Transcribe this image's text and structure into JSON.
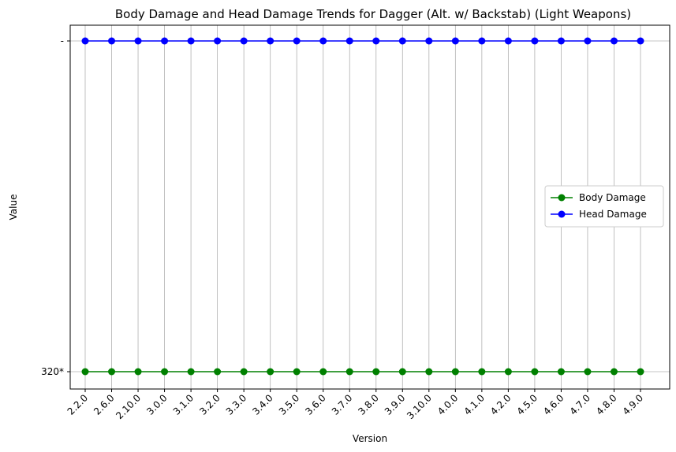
{
  "chart_data": {
    "type": "line",
    "title": "Body Damage and Head Damage Trends for Dagger (Alt. w/ Backstab) (Light Weapons)",
    "xlabel": "Version",
    "ylabel": "Value",
    "categories": [
      "2.2.0",
      "2.6.0",
      "2.10.0",
      "3.0.0",
      "3.1.0",
      "3.2.0",
      "3.3.0",
      "3.4.0",
      "3.5.0",
      "3.6.0",
      "3.7.0",
      "3.8.0",
      "3.9.0",
      "3.10.0",
      "4.0.0",
      "4.1.0",
      "4.2.0",
      "4.5.0",
      "4.6.0",
      "4.7.0",
      "4.8.0",
      "4.9.0"
    ],
    "y_categories": [
      "320*",
      "-"
    ],
    "series": [
      {
        "name": "Body Damage",
        "color": "#008000",
        "values": [
          "320*",
          "320*",
          "320*",
          "320*",
          "320*",
          "320*",
          "320*",
          "320*",
          "320*",
          "320*",
          "320*",
          "320*",
          "320*",
          "320*",
          "320*",
          "320*",
          "320*",
          "320*",
          "320*",
          "320*",
          "320*",
          "320*"
        ]
      },
      {
        "name": "Head Damage",
        "color": "#0000ff",
        "values": [
          "-",
          "-",
          "-",
          "-",
          "-",
          "-",
          "-",
          "-",
          "-",
          "-",
          "-",
          "-",
          "-",
          "-",
          "-",
          "-",
          "-",
          "-",
          "-",
          "-",
          "-",
          "-"
        ]
      }
    ],
    "grid": true,
    "legend_position": "center-right"
  }
}
